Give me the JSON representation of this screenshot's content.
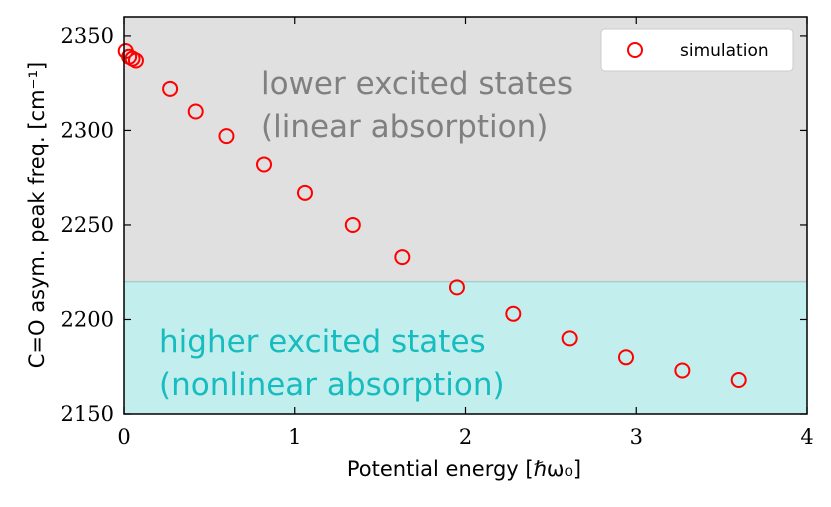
{
  "chart_data": {
    "type": "scatter",
    "xlabel": "Potential energy [ℏω₀]",
    "ylabel": "C=O asym. peak freq. [cm⁻¹]",
    "xlim": [
      0,
      4
    ],
    "ylim": [
      2150,
      2360
    ],
    "xticks": [
      0,
      1,
      2,
      3,
      4
    ],
    "yticks": [
      2150,
      2200,
      2250,
      2300,
      2350
    ],
    "series": [
      {
        "name": "simulation",
        "color": "#ff0000",
        "marker": "open-circle",
        "x": [
          0.01,
          0.03,
          0.05,
          0.07,
          0.27,
          0.42,
          0.6,
          0.82,
          1.06,
          1.34,
          1.63,
          1.95,
          2.28,
          2.61,
          2.94,
          3.27,
          3.6
        ],
        "y": [
          2342,
          2339,
          2338,
          2337,
          2322,
          2310,
          2297,
          2282,
          2267,
          2250,
          2233,
          2217,
          2203,
          2190,
          2180,
          2173,
          2168
        ]
      }
    ],
    "regions": [
      {
        "label_line1": "lower excited states",
        "label_line2": "(linear absorption)",
        "y_from": 2220,
        "y_to": 2360,
        "fill": "#e0e0e0",
        "text_color": "#808080"
      },
      {
        "label_line1": "higher excited states",
        "label_line2": "(nonlinear absorption)",
        "y_from": 2150,
        "y_to": 2220,
        "fill": "#c3eeee",
        "text_color": "#17bcbf"
      }
    ],
    "legend": {
      "position": "top-right",
      "entries": [
        "simulation"
      ]
    },
    "grid": false
  }
}
